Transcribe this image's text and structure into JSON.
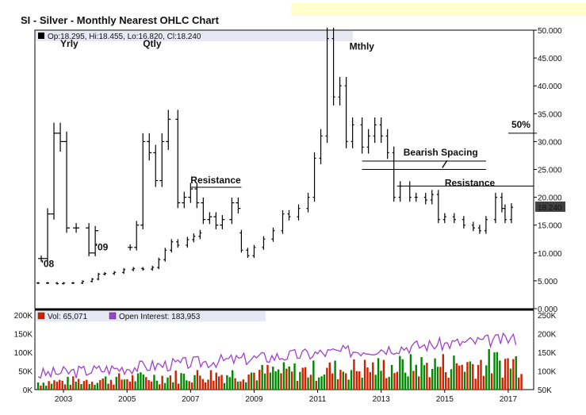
{
  "chart_data": {
    "type": "ohlc",
    "title": "SI - Silver - Monthly Nearest OHLC Chart",
    "colors": {
      "up_bar": "#000000",
      "volume": "#cc2200",
      "volume_up": "#008800",
      "open_interest": "#a040d0",
      "last_value_box": "#404040",
      "legend_band": "#e8e8f4"
    },
    "price_panel": {
      "legend": {
        "icon": "black-square-icon",
        "text": "Op:18.295, Hi:18.455, Lo:16.820, Cl:18.240"
      },
      "y_ticks": [
        "0.000",
        "5.000",
        "10.000",
        "15.000",
        "20.000",
        "25.000",
        "30.000",
        "35.000",
        "40.000",
        "45.000",
        "50.000"
      ],
      "ylim": [
        0,
        50
      ],
      "last_value": "18.240",
      "monthly_closes": [
        [
          2002.2,
          4.6
        ],
        [
          2002.5,
          4.6
        ],
        [
          2002.8,
          4.5
        ],
        [
          2003.0,
          4.6
        ],
        [
          2003.3,
          4.6
        ],
        [
          2003.6,
          4.9
        ],
        [
          2003.9,
          5.3
        ],
        [
          2004.1,
          6.2
        ],
        [
          2004.3,
          6.3
        ],
        [
          2004.6,
          6.5
        ],
        [
          2004.9,
          7.0
        ],
        [
          2005.2,
          7.2
        ],
        [
          2005.5,
          7.1
        ],
        [
          2005.8,
          7.4
        ],
        [
          2006.0,
          8.8
        ],
        [
          2006.2,
          10.5
        ],
        [
          2006.4,
          12.0
        ],
        [
          2006.6,
          11.4
        ],
        [
          2006.9,
          12.4
        ],
        [
          2007.1,
          13.0
        ],
        [
          2007.3,
          13.6
        ],
        [
          2008.6,
          10.5
        ],
        [
          2008.8,
          9.5
        ],
        [
          2009.0,
          11.0
        ],
        [
          2009.3,
          12.5
        ],
        [
          2009.6,
          14.0
        ],
        [
          2009.9,
          17.0
        ],
        [
          2010.1,
          16.5
        ],
        [
          2010.4,
          18.0
        ],
        [
          2010.7,
          20.0
        ],
        [
          2010.9,
          27.0
        ],
        [
          2011.1,
          31.0
        ],
        [
          2011.3,
          48.5
        ],
        [
          2011.5,
          38.0
        ],
        [
          2011.7,
          40.0
        ],
        [
          2011.9,
          30.0
        ],
        [
          2012.1,
          33.0
        ],
        [
          2012.4,
          29.0
        ],
        [
          2012.6,
          31.0
        ],
        [
          2012.8,
          33.0
        ],
        [
          2013.0,
          31.0
        ],
        [
          2013.2,
          28.0
        ],
        [
          2013.4,
          20.0
        ],
        [
          2013.6,
          22.0
        ],
        [
          2013.9,
          20.0
        ],
        [
          2014.1,
          20.0
        ],
        [
          2014.4,
          19.5
        ],
        [
          2014.6,
          20.5
        ],
        [
          2014.8,
          16.0
        ],
        [
          2015.0,
          16.5
        ],
        [
          2015.3,
          16.0
        ],
        [
          2015.6,
          15.0
        ],
        [
          2015.9,
          14.5
        ],
        [
          2016.1,
          14.0
        ],
        [
          2016.3,
          16.0
        ],
        [
          2016.6,
          20.0
        ],
        [
          2016.8,
          18.0
        ],
        [
          2016.9,
          16.0
        ],
        [
          2017.1,
          18.2
        ]
      ],
      "quarterly_closes": [
        [
          2005.1,
          11.0
        ],
        [
          2005.3,
          15.0
        ],
        [
          2005.5,
          30.0
        ],
        [
          2005.7,
          28.0
        ],
        [
          2005.9,
          23.0
        ],
        [
          2006.1,
          30.0
        ],
        [
          2006.3,
          34.0
        ],
        [
          2006.6,
          19.0
        ],
        [
          2006.8,
          20.0
        ],
        [
          2007.0,
          21.5
        ],
        [
          2007.2,
          19.0
        ],
        [
          2007.4,
          16.0
        ],
        [
          2007.6,
          16.5
        ],
        [
          2007.8,
          15.0
        ],
        [
          2008.0,
          16.0
        ],
        [
          2008.3,
          19.0
        ],
        [
          2008.5,
          18.0
        ]
      ],
      "yearly_closes": [
        [
          2002.3,
          9.0
        ],
        [
          2002.5,
          17.0
        ],
        [
          2002.7,
          31.5
        ],
        [
          2002.9,
          30.0
        ],
        [
          2003.1,
          14.5
        ],
        [
          2003.4,
          14.5
        ],
        [
          2003.8,
          10.0
        ],
        [
          2004.0,
          14.0
        ]
      ],
      "annotations": [
        {
          "text": "Yrly",
          "x": 2002.9,
          "y": 47
        },
        {
          "text": "Qtly",
          "x": 2005.5,
          "y": 47
        },
        {
          "text": "Mthly",
          "x": 2012.0,
          "y": 46.5
        },
        {
          "text": "'08",
          "x": 2002.3,
          "y": 7.5
        },
        {
          "text": "'09",
          "x": 2004.0,
          "y": 10.5
        },
        {
          "text": "Resistance",
          "x": 2007.0,
          "y": 22.5
        },
        {
          "text": "Bearish Spacing",
          "x": 2013.7,
          "y": 27.5
        },
        {
          "text": "Resistance",
          "x": 2015.0,
          "y": 22.0
        },
        {
          "text": "50%",
          "x": 2017.1,
          "y": 32.5
        }
      ],
      "reference_lines": [
        {
          "x1": 2007.0,
          "x2": 2008.6,
          "y": 21.8
        },
        {
          "x1": 2012.4,
          "x2": 2016.3,
          "y": 26.5
        },
        {
          "x1": 2012.4,
          "x2": 2016.3,
          "y": 25.0
        },
        {
          "x1": 2013.5,
          "x2": 2017.8,
          "y": 22.0
        },
        {
          "x1": 2017.0,
          "x2": 2017.9,
          "y": 31.5
        }
      ]
    },
    "volume_panel": {
      "legend": [
        {
          "icon": "red-square-icon",
          "text": "Vol: 65,071"
        },
        {
          "icon": "purple-square-icon",
          "text": "Open Interest: 183,953"
        }
      ],
      "left_ticks": [
        "0K",
        "50K",
        "100K",
        "150K",
        "200K"
      ],
      "right_ticks": [
        "50K",
        "100K",
        "150K",
        "200K",
        "250K"
      ],
      "volume_ylim": [
        0,
        200
      ],
      "oi_ylim": [
        50,
        250
      ]
    },
    "x_ticks": [
      "2003",
      "2005",
      "2007",
      "2009",
      "2011",
      "2013",
      "2015",
      "2017"
    ],
    "xlim": [
      2002.1,
      2017.8
    ]
  }
}
